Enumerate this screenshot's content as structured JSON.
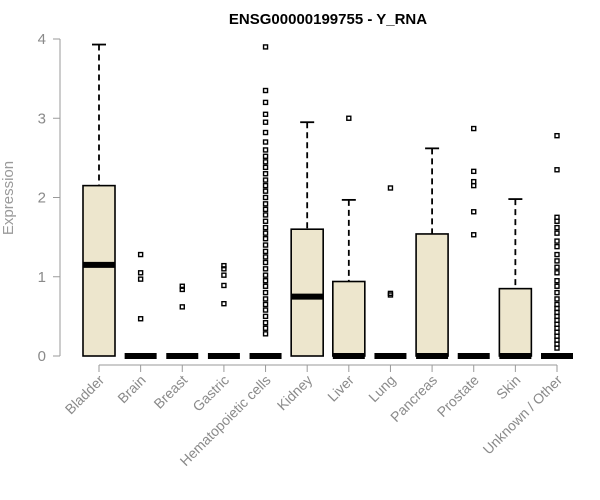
{
  "chart_data": {
    "type": "boxplot",
    "title": "ENSG00000199755 - Y_RNA",
    "xlabel": "",
    "ylabel": "Expression",
    "ylim": [
      0,
      4
    ],
    "yticks": [
      0,
      1,
      2,
      3,
      4
    ],
    "grid": false,
    "box_color": "#ede6cd",
    "categories": [
      "Bladder",
      "Brain",
      "Breast",
      "Gastric",
      "Hematopoietic cells",
      "Kidney",
      "Liver",
      "Lung",
      "Pancreas",
      "Prostate",
      "Skin",
      "Unknown / Other"
    ],
    "boxes": [
      {
        "min": 0,
        "q1": 0,
        "median": 1.15,
        "q3": 2.15,
        "max": 3.93,
        "outliers": []
      },
      {
        "min": 0,
        "q1": 0,
        "median": 0,
        "q3": 0,
        "max": 0,
        "outliers": [
          0.47,
          0.97,
          1.05,
          1.28
        ]
      },
      {
        "min": 0,
        "q1": 0,
        "median": 0,
        "q3": 0,
        "max": 0,
        "outliers": [
          0.62,
          0.84,
          0.88
        ]
      },
      {
        "min": 0,
        "q1": 0,
        "median": 0,
        "q3": 0,
        "max": 0,
        "outliers": [
          0.66,
          0.89,
          1.02,
          1.1,
          1.14
        ]
      },
      {
        "min": 0,
        "q1": 0,
        "median": 0,
        "q3": 0,
        "max": 0,
        "outliers": [
          0.28,
          0.35,
          0.42,
          0.5,
          0.58,
          0.65,
          0.72,
          0.8,
          0.88,
          0.95,
          1.02,
          1.1,
          1.18,
          1.25,
          1.32,
          1.4,
          1.48,
          1.55,
          1.62,
          1.7,
          1.78,
          1.85,
          1.92,
          2.0,
          2.08,
          2.15,
          2.22,
          2.3,
          2.38,
          2.45,
          2.52,
          2.6,
          2.7,
          2.82,
          2.95,
          3.05,
          3.2,
          3.35,
          3.9
        ]
      },
      {
        "min": 0,
        "q1": 0,
        "median": 0.75,
        "q3": 1.6,
        "max": 2.95,
        "outliers": []
      },
      {
        "min": 0,
        "q1": 0,
        "median": 0,
        "q3": 0.94,
        "max": 1.97,
        "outliers": [
          3.0
        ]
      },
      {
        "min": 0,
        "q1": 0,
        "median": 0,
        "q3": 0,
        "max": 0,
        "outliers": [
          0.77,
          0.79,
          2.12
        ]
      },
      {
        "min": 0,
        "q1": 0,
        "median": 0,
        "q3": 1.54,
        "max": 2.62,
        "outliers": []
      },
      {
        "min": 0,
        "q1": 0,
        "median": 0,
        "q3": 0,
        "max": 0,
        "outliers": [
          1.53,
          1.82,
          2.15,
          2.2,
          2.33,
          2.87
        ]
      },
      {
        "min": 0,
        "q1": 0,
        "median": 0,
        "q3": 0.85,
        "max": 1.98,
        "outliers": []
      },
      {
        "min": 0,
        "q1": 0,
        "median": 0,
        "q3": 0,
        "max": 0,
        "outliers": [
          0.1,
          0.15,
          0.2,
          0.25,
          0.3,
          0.35,
          0.4,
          0.45,
          0.5,
          0.55,
          0.6,
          0.65,
          0.72,
          0.8,
          0.88,
          0.95,
          1.05,
          1.12,
          1.2,
          1.28,
          1.38,
          1.45,
          1.55,
          1.62,
          1.7,
          1.75,
          2.35,
          2.78
        ]
      }
    ]
  }
}
